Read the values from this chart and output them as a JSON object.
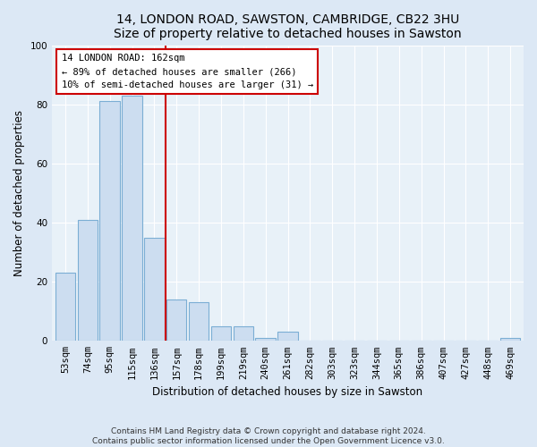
{
  "title1": "14, LONDON ROAD, SAWSTON, CAMBRIDGE, CB22 3HU",
  "title2": "Size of property relative to detached houses in Sawston",
  "xlabel": "Distribution of detached houses by size in Sawston",
  "ylabel": "Number of detached properties",
  "categories": [
    "53sqm",
    "74sqm",
    "95sqm",
    "115sqm",
    "136sqm",
    "157sqm",
    "178sqm",
    "199sqm",
    "219sqm",
    "240sqm",
    "261sqm",
    "282sqm",
    "303sqm",
    "323sqm",
    "344sqm",
    "365sqm",
    "386sqm",
    "407sqm",
    "427sqm",
    "448sqm",
    "469sqm"
  ],
  "values": [
    23,
    41,
    81,
    83,
    35,
    14,
    13,
    5,
    5,
    1,
    3,
    0,
    0,
    0,
    0,
    0,
    0,
    0,
    0,
    0,
    1
  ],
  "bar_color": "#ccddf0",
  "bar_edge_color": "#7baed4",
  "highlight_line_color": "#cc0000",
  "highlight_line_idx": 5,
  "annotation_text": "14 LONDON ROAD: 162sqm\n← 89% of detached houses are smaller (266)\n10% of semi-detached houses are larger (31) →",
  "annotation_box_facecolor": "#ffffff",
  "annotation_box_edgecolor": "#cc0000",
  "ylim": [
    0,
    100
  ],
  "yticks": [
    0,
    20,
    40,
    60,
    80,
    100
  ],
  "footer1": "Contains HM Land Registry data © Crown copyright and database right 2024.",
  "footer2": "Contains public sector information licensed under the Open Government Licence v3.0.",
  "bg_color": "#dce8f5",
  "plot_bg_color": "#e8f1f8",
  "grid_color": "#ffffff",
  "title_fontsize": 10,
  "label_fontsize": 8.5,
  "tick_fontsize": 7.5,
  "footer_fontsize": 6.5
}
